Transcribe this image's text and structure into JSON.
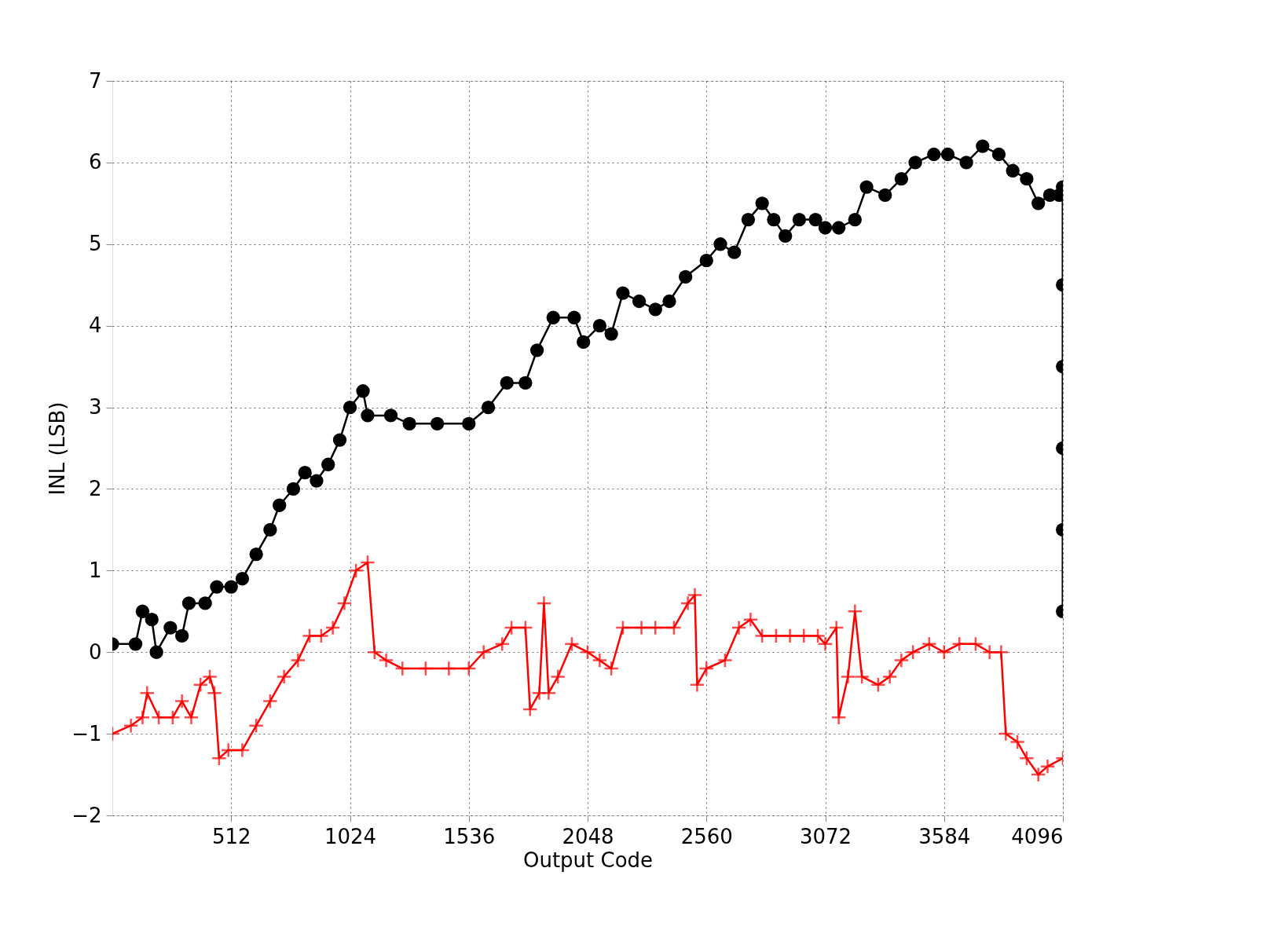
{
  "chart_data": {
    "type": "line",
    "xlabel": "Output Code",
    "ylabel": "INL (LSB)",
    "xlim": [
      0,
      4096
    ],
    "xticks": [
      512,
      1024,
      1536,
      2048,
      2560,
      3072,
      3584,
      4096
    ],
    "ylim": [
      -2,
      7
    ],
    "yticks": [
      -2,
      -1,
      0,
      1,
      2,
      3,
      4,
      5,
      6,
      7
    ],
    "grid": true,
    "series": [
      {
        "color": "#000000",
        "marker": "circle",
        "x": [
          0,
          100,
          130,
          170,
          190,
          250,
          300,
          330,
          400,
          450,
          512,
          560,
          620,
          680,
          720,
          780,
          830,
          880,
          930,
          980,
          1024,
          1080,
          1100,
          1200,
          1280,
          1400,
          1536,
          1620,
          1700,
          1780,
          1830,
          1900,
          1990,
          2030,
          2100,
          2150,
          2200,
          2270,
          2340,
          2400,
          2470,
          2560,
          2620,
          2680,
          2740,
          2800,
          2850,
          2900,
          2960,
          3030,
          3072,
          3130,
          3200,
          3250,
          3330,
          3400,
          3460,
          3540,
          3600,
          3680,
          3750,
          3820,
          3880,
          3940,
          3990,
          4040,
          4080,
          4095,
          4095,
          4095,
          4095,
          4095,
          4095
        ],
        "values": [
          0.1,
          0.1,
          0.5,
          0.4,
          0.0,
          0.3,
          0.2,
          0.6,
          0.6,
          0.8,
          0.8,
          0.9,
          1.2,
          1.5,
          1.8,
          2.0,
          2.2,
          2.1,
          2.3,
          2.6,
          3.0,
          3.2,
          2.9,
          2.9,
          2.8,
          2.8,
          2.8,
          3.0,
          3.3,
          3.3,
          3.7,
          4.1,
          4.1,
          3.8,
          4.0,
          3.9,
          4.4,
          4.3,
          4.2,
          4.3,
          4.6,
          4.8,
          5.0,
          4.9,
          5.3,
          5.5,
          5.3,
          5.1,
          5.3,
          5.3,
          5.2,
          5.2,
          5.3,
          5.7,
          5.6,
          5.8,
          6.0,
          6.1,
          6.1,
          6.0,
          6.2,
          6.1,
          5.9,
          5.8,
          5.5,
          5.6,
          5.6,
          5.7,
          4.5,
          3.5,
          2.5,
          1.5,
          0.5
        ]
      },
      {
        "color": "#ff0000",
        "marker": "cross",
        "x": [
          0,
          80,
          130,
          150,
          200,
          260,
          300,
          340,
          380,
          420,
          440,
          460,
          500,
          560,
          620,
          680,
          740,
          800,
          850,
          900,
          950,
          1000,
          1050,
          1100,
          1130,
          1180,
          1250,
          1350,
          1450,
          1536,
          1600,
          1680,
          1720,
          1780,
          1800,
          1840,
          1860,
          1880,
          1920,
          1980,
          2048,
          2100,
          2150,
          2200,
          2280,
          2340,
          2420,
          2480,
          2510,
          2520,
          2560,
          2640,
          2700,
          2750,
          2800,
          2860,
          2920,
          2980,
          3040,
          3072,
          3120,
          3130,
          3170,
          3200,
          3230,
          3300,
          3350,
          3400,
          3450,
          3520,
          3584,
          3650,
          3720,
          3780,
          3830,
          3850,
          3900,
          3940,
          3990,
          4030,
          4096
        ],
        "values": [
          -1.0,
          -0.9,
          -0.8,
          -0.5,
          -0.8,
          -0.8,
          -0.6,
          -0.8,
          -0.4,
          -0.3,
          -0.5,
          -1.3,
          -1.2,
          -1.2,
          -0.9,
          -0.6,
          -0.3,
          -0.1,
          0.2,
          0.2,
          0.3,
          0.6,
          1.0,
          1.1,
          0.0,
          -0.1,
          -0.2,
          -0.2,
          -0.2,
          -0.2,
          0.0,
          0.1,
          0.3,
          0.3,
          -0.7,
          -0.5,
          0.6,
          -0.5,
          -0.3,
          0.1,
          0.0,
          -0.1,
          -0.2,
          0.3,
          0.3,
          0.3,
          0.3,
          0.6,
          0.7,
          -0.4,
          -0.2,
          -0.1,
          0.3,
          0.4,
          0.2,
          0.2,
          0.2,
          0.2,
          0.2,
          0.1,
          0.3,
          -0.8,
          -0.3,
          0.5,
          -0.3,
          -0.4,
          -0.3,
          -0.1,
          0.0,
          0.1,
          0.0,
          0.1,
          0.1,
          0.0,
          0.0,
          -1.0,
          -1.1,
          -1.3,
          -1.5,
          -1.4,
          -1.3
        ]
      }
    ]
  }
}
